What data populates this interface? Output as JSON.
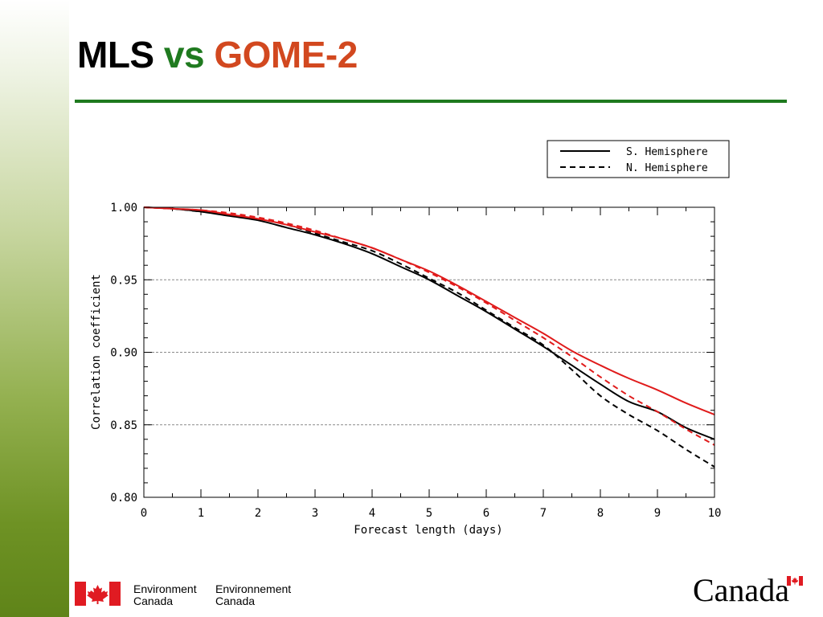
{
  "slide": {
    "title_parts": [
      "MLS",
      "vs",
      "GOME-2"
    ],
    "colors": {
      "title_main": "#000000",
      "title_vs": "#1f7a1f",
      "title_gome": "#d2481f",
      "rule": "#1f7a1f"
    }
  },
  "footer": {
    "en_line1": "Environment",
    "en_line2": "Canada",
    "fr_line1": "Environnement",
    "fr_line2": "Canada",
    "wordmark": "Canada",
    "flag_red": "#e01b22"
  },
  "chart_data": {
    "type": "line",
    "title": "",
    "xlabel": "Forecast length (days)",
    "ylabel": "Correlation coefficient",
    "xlim": [
      0,
      10
    ],
    "ylim": [
      0.8,
      1.0
    ],
    "x_ticks": [
      "0",
      "1",
      "2",
      "3",
      "4",
      "5",
      "6",
      "7",
      "8",
      "9",
      "10"
    ],
    "y_ticks": [
      "0.80",
      "0.85",
      "0.90",
      "0.95",
      "1.00"
    ],
    "grid": "horizontal dashed at 0.85, 0.90, 0.95",
    "legend": {
      "placement": "above plot, top-right",
      "entries": [
        {
          "label": "S. Hemisphere",
          "style": "solid"
        },
        {
          "label": "N. Hemisphere",
          "style": "dashed"
        }
      ]
    },
    "x": [
      0,
      0.5,
      1,
      1.5,
      2,
      2.5,
      3,
      3.5,
      4,
      4.5,
      5,
      5.5,
      6,
      6.5,
      7,
      7.5,
      8,
      8.5,
      9,
      9.5,
      10
    ],
    "series": [
      {
        "style": "solid",
        "color": "#000000",
        "values": [
          1.0,
          0.999,
          0.997,
          0.994,
          0.991,
          0.986,
          0.981,
          0.975,
          0.968,
          0.959,
          0.95,
          0.939,
          0.928,
          0.916,
          0.904,
          0.891,
          0.878,
          0.866,
          0.859,
          0.848,
          0.84
        ]
      },
      {
        "style": "dashed",
        "color": "#000000",
        "values": [
          1.0,
          0.999,
          0.997,
          0.995,
          0.992,
          0.988,
          0.982,
          0.976,
          0.97,
          0.961,
          0.951,
          0.941,
          0.929,
          0.917,
          0.905,
          0.888,
          0.87,
          0.857,
          0.846,
          0.833,
          0.821
        ]
      },
      {
        "style": "solid",
        "color": "#e01b1b",
        "values": [
          1.0,
          0.999,
          0.998,
          0.995,
          0.992,
          0.988,
          0.983,
          0.978,
          0.972,
          0.964,
          0.956,
          0.946,
          0.935,
          0.924,
          0.913,
          0.901,
          0.891,
          0.882,
          0.874,
          0.865,
          0.857
        ]
      },
      {
        "style": "dashed",
        "color": "#e01b1b",
        "values": [
          1.0,
          0.999,
          0.998,
          0.996,
          0.993,
          0.989,
          0.984,
          0.978,
          0.972,
          0.964,
          0.955,
          0.945,
          0.934,
          0.922,
          0.91,
          0.897,
          0.883,
          0.87,
          0.859,
          0.847,
          0.836
        ]
      }
    ]
  }
}
